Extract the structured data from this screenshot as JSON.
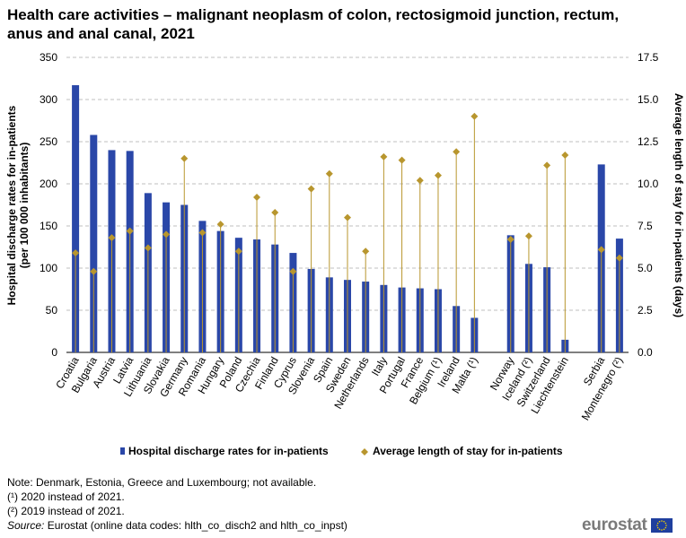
{
  "title": "Health care activities – malignant neoplasm of colon, rectosigmoid junction, rectum, anus and anal canal, 2021",
  "chart_data": {
    "type": "bar",
    "categories": [
      "Croatia",
      "Bulgaria",
      "Austria",
      "Latvia",
      "Lithuania",
      "Slovakia",
      "Germany",
      "Romania",
      "Hungary",
      "Poland",
      "Czechia",
      "Finland",
      "Cyprus",
      "Slovenia",
      "Spain",
      "Sweden",
      "Netherlands",
      "Italy",
      "Portugal",
      "France",
      "Belgium (¹)",
      "Ireland",
      "Malta (¹)",
      "",
      "Norway",
      "Iceland (²)",
      "Switzerland",
      "Liechtenstein",
      "",
      "Serbia",
      "Montenegro (²)"
    ],
    "series": [
      {
        "name": "Hospital discharge rates for in-patients",
        "axis": "left",
        "color": "#2a47a8",
        "values": [
          317,
          258,
          240,
          239,
          189,
          178,
          175,
          156,
          144,
          136,
          134,
          128,
          118,
          99,
          89,
          86,
          84,
          80,
          77,
          76,
          75,
          55,
          41,
          null,
          139,
          105,
          101,
          15,
          null,
          223,
          135
        ]
      },
      {
        "name": "Average length of stay for in-patients",
        "axis": "right",
        "color": "#b8962e",
        "values": [
          5.9,
          4.8,
          6.8,
          7.2,
          6.2,
          7.0,
          11.5,
          7.1,
          7.6,
          6.0,
          9.2,
          8.3,
          4.8,
          9.7,
          10.6,
          8.0,
          6.0,
          11.6,
          11.4,
          10.2,
          10.5,
          11.9,
          14.0,
          null,
          6.7,
          6.9,
          11.1,
          11.7,
          null,
          6.1,
          5.6
        ]
      }
    ],
    "ylabel": "Hospital discharge rates for in-patients (per 100 000 inhabitants)",
    "ylabel_line1": "Hospital discharge rates for in-patients",
    "ylabel_line2": "(per 100 000 inhabitants)",
    "y2label": "Average length of stay for in-patients (days)",
    "ylim": [
      0,
      350
    ],
    "yticks": [
      0,
      50,
      100,
      150,
      200,
      250,
      300,
      350
    ],
    "y2lim": [
      0,
      17.5
    ],
    "y2ticks": [
      "0.0",
      "2.5",
      "5.0",
      "7.5",
      "10.0",
      "12.5",
      "15.0",
      "17.5"
    ],
    "grid": "dashed horizontal",
    "legend_position": "bottom"
  },
  "notes": {
    "note": "Note: Denmark, Estonia, Greece and Luxembourg; not available.",
    "fn1": "(¹) 2020 instead of 2021.",
    "fn2": "(²) 2019 instead of 2021.",
    "source_label": "Source:",
    "source_text": " Eurostat (online data codes: hlth_co_disch2 and hlth_co_inpst)"
  },
  "logo": {
    "text": "eurostat",
    "flag_color": "#1f3f9e",
    "star_color": "#f4d100"
  }
}
